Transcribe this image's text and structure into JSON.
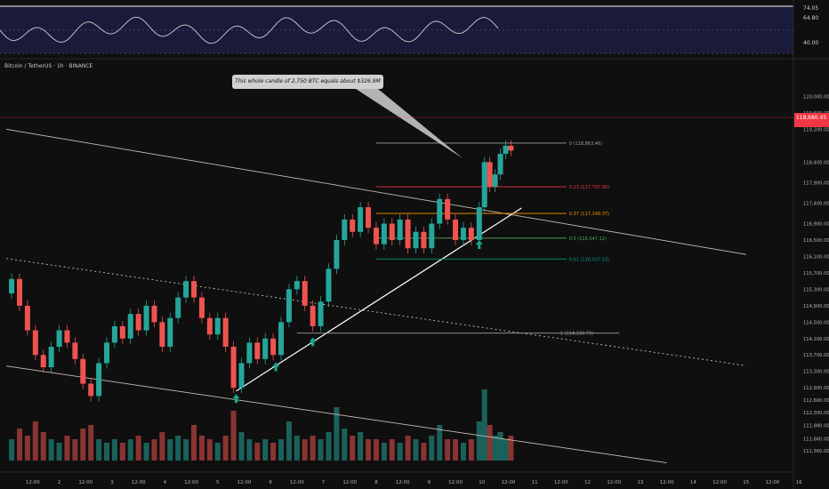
{
  "header": {
    "symbol_title": "Bitcoin / TetherUS · 1h · BINANCE"
  },
  "annotation": {
    "text": "This whole candle of 2,750 BTC equals about $326.9M in volume..."
  },
  "colors": {
    "background": "#0f0f0f",
    "bull": "#26a69a",
    "bear": "#ef5350",
    "fib_0": "#9e9e9e",
    "fib_023": "#f23645",
    "fib_037": "#ff9800",
    "fib_05": "#4caf50",
    "fib_061": "#089981",
    "fib_1": "#9e9e9e",
    "channel": "#c8bfae",
    "rsi_band": "#1a1a3a",
    "rsi_line": "#cfcfcf",
    "arrow": "#1aa58a"
  },
  "rsi_panel": {
    "ticks": [
      "74.05",
      "64.80",
      "40.00"
    ]
  },
  "chart_data": {
    "type": "candlestick",
    "title": "Bitcoin / TetherUS · 1h · BINANCE",
    "last_price_label": "118,680.45",
    "last_price": 118680.45,
    "ylim": [
      111300,
      120400
    ],
    "y_ticks": [
      "120,000.00",
      "119,600.00",
      "119,200.00",
      "118,400.00",
      "117,900.00",
      "117,400.00",
      "116,900.00",
      "116,500.00",
      "116,100.00",
      "115,700.00",
      "115,300.00",
      "114,900.00",
      "114,500.00",
      "114,100.00",
      "113,700.00",
      "113,300.00",
      "112,900.00",
      "112,600.00",
      "112,300.00",
      "111,980.00",
      "111,660.00",
      "111,360.00"
    ],
    "x_ticks": [
      {
        "label": "12:00",
        "d": 1.5
      },
      {
        "label": "2",
        "d": 2
      },
      {
        "label": "12:00",
        "d": 2.5
      },
      {
        "label": "3",
        "d": 3
      },
      {
        "label": "12:00",
        "d": 3.5
      },
      {
        "label": "4",
        "d": 4
      },
      {
        "label": "12:00",
        "d": 4.5
      },
      {
        "label": "5",
        "d": 5
      },
      {
        "label": "12:00",
        "d": 5.5
      },
      {
        "label": "6",
        "d": 6
      },
      {
        "label": "12:00",
        "d": 6.5
      },
      {
        "label": "7",
        "d": 7
      },
      {
        "label": "12:00",
        "d": 7.5
      },
      {
        "label": "8",
        "d": 8
      },
      {
        "label": "12:00",
        "d": 8.5
      },
      {
        "label": "9",
        "d": 9
      },
      {
        "label": "12:00",
        "d": 9.5
      },
      {
        "label": "10",
        "d": 10
      },
      {
        "label": "12:00",
        "d": 10.5
      },
      {
        "label": "11",
        "d": 11
      },
      {
        "label": "12:00",
        "d": 11.5
      },
      {
        "label": "12",
        "d": 12
      },
      {
        "label": "12:00",
        "d": 12.5
      },
      {
        "label": "13",
        "d": 13
      },
      {
        "label": "12:00",
        "d": 13.5
      },
      {
        "label": "14",
        "d": 14
      },
      {
        "label": "12:00",
        "d": 14.5
      },
      {
        "label": "15",
        "d": 15
      },
      {
        "label": "12:00",
        "d": 15.5
      },
      {
        "label": "16",
        "d": 16
      }
    ],
    "fib_levels": [
      {
        "label": "0 (118,863.46)",
        "value": 118863.46,
        "color": "#9e9e9e"
      },
      {
        "label": "0.23 (117,797.95)",
        "value": 117797.95,
        "color": "#f23645"
      },
      {
        "label": "0.37 (117,149.37)",
        "value": 117149.37,
        "color": "#ff9800"
      },
      {
        "label": "0.5 (116,547.12)",
        "value": 116547.12,
        "color": "#4caf50"
      },
      {
        "label": "0.61 (116,037.53)",
        "value": 116037.53,
        "color": "#089981"
      },
      {
        "label": "1 (114,230.79)",
        "value": 114230.79,
        "color": "#9e9e9e"
      }
    ],
    "fib_start_d": 8.0,
    "fib_end_d": 11.6,
    "fib_label_d": 11.65,
    "fib1_start_d": 6.5,
    "fib1_end_d": 12.6,
    "trendlines": [
      {
        "name": "upper-channel",
        "from": [
          1.0,
          119200
        ],
        "to": [
          15.0,
          116150
        ]
      },
      {
        "name": "lower-channel",
        "from": [
          1.0,
          113430
        ],
        "to": [
          13.5,
          111070
        ]
      },
      {
        "name": "dotted-mid",
        "from": [
          1.0,
          116050
        ],
        "to": [
          15.0,
          113440
        ]
      },
      {
        "name": "rising-support",
        "from": [
          5.35,
          112820
        ],
        "to": [
          10.75,
          117280
        ]
      }
    ],
    "arrows": [
      {
        "d": 5.35,
        "value": 112620
      },
      {
        "d": 6.1,
        "value": 113390
      },
      {
        "d": 6.8,
        "value": 114000
      },
      {
        "d": 9.95,
        "value": 116370
      }
    ],
    "ohlc": [
      {
        "d": 1.1,
        "o": 115200,
        "c": 115550
      },
      {
        "d": 1.25,
        "o": 115550,
        "c": 114900
      },
      {
        "d": 1.4,
        "o": 114900,
        "c": 114300
      },
      {
        "d": 1.55,
        "o": 114300,
        "c": 113700
      },
      {
        "d": 1.7,
        "o": 113700,
        "c": 113400
      },
      {
        "d": 1.85,
        "o": 113400,
        "c": 113900
      },
      {
        "d": 2.0,
        "o": 113900,
        "c": 114300
      },
      {
        "d": 2.15,
        "o": 114300,
        "c": 114000
      },
      {
        "d": 2.3,
        "o": 114000,
        "c": 113600
      },
      {
        "d": 2.45,
        "o": 113600,
        "c": 113000
      },
      {
        "d": 2.6,
        "o": 113000,
        "c": 112700
      },
      {
        "d": 2.75,
        "o": 112700,
        "c": 113500
      },
      {
        "d": 2.9,
        "o": 113500,
        "c": 114000
      },
      {
        "d": 3.05,
        "o": 114000,
        "c": 114400
      },
      {
        "d": 3.2,
        "o": 114400,
        "c": 114100
      },
      {
        "d": 3.35,
        "o": 114100,
        "c": 114700
      },
      {
        "d": 3.5,
        "o": 114700,
        "c": 114300
      },
      {
        "d": 3.65,
        "o": 114300,
        "c": 114900
      },
      {
        "d": 3.8,
        "o": 114900,
        "c": 114500
      },
      {
        "d": 3.95,
        "o": 114500,
        "c": 113900
      },
      {
        "d": 4.1,
        "o": 113900,
        "c": 114600
      },
      {
        "d": 4.25,
        "o": 114600,
        "c": 115100
      },
      {
        "d": 4.4,
        "o": 115100,
        "c": 115500
      },
      {
        "d": 4.55,
        "o": 115500,
        "c": 115100
      },
      {
        "d": 4.7,
        "o": 115100,
        "c": 114600
      },
      {
        "d": 4.85,
        "o": 114600,
        "c": 114200
      },
      {
        "d": 5.0,
        "o": 114200,
        "c": 114600
      },
      {
        "d": 5.15,
        "o": 114600,
        "c": 113900
      },
      {
        "d": 5.3,
        "o": 113900,
        "c": 112900
      },
      {
        "d": 5.45,
        "o": 112900,
        "c": 113500
      },
      {
        "d": 5.6,
        "o": 113500,
        "c": 114000
      },
      {
        "d": 5.75,
        "o": 114000,
        "c": 113600
      },
      {
        "d": 5.9,
        "o": 113600,
        "c": 114100
      },
      {
        "d": 6.05,
        "o": 114100,
        "c": 113700
      },
      {
        "d": 6.2,
        "o": 113700,
        "c": 114500
      },
      {
        "d": 6.35,
        "o": 114500,
        "c": 115300
      },
      {
        "d": 6.5,
        "o": 115300,
        "c": 115500
      },
      {
        "d": 6.65,
        "o": 115500,
        "c": 114900
      },
      {
        "d": 6.8,
        "o": 114900,
        "c": 114400
      },
      {
        "d": 6.95,
        "o": 114400,
        "c": 115000
      },
      {
        "d": 7.1,
        "o": 115000,
        "c": 115800
      },
      {
        "d": 7.25,
        "o": 115800,
        "c": 116500
      },
      {
        "d": 7.4,
        "o": 116500,
        "c": 117000
      },
      {
        "d": 7.55,
        "o": 117000,
        "c": 116700
      },
      {
        "d": 7.7,
        "o": 116700,
        "c": 117300
      },
      {
        "d": 7.85,
        "o": 117300,
        "c": 116800
      },
      {
        "d": 8.0,
        "o": 116800,
        "c": 116400
      },
      {
        "d": 8.15,
        "o": 116400,
        "c": 116900
      },
      {
        "d": 8.3,
        "o": 116900,
        "c": 116500
      },
      {
        "d": 8.45,
        "o": 116500,
        "c": 117000
      },
      {
        "d": 8.6,
        "o": 117000,
        "c": 116300
      },
      {
        "d": 8.75,
        "o": 116300,
        "c": 116700
      },
      {
        "d": 8.9,
        "o": 116700,
        "c": 116300
      },
      {
        "d": 9.05,
        "o": 116300,
        "c": 116900
      },
      {
        "d": 9.2,
        "o": 116900,
        "c": 117500
      },
      {
        "d": 9.35,
        "o": 117500,
        "c": 117000
      },
      {
        "d": 9.5,
        "o": 117000,
        "c": 116500
      },
      {
        "d": 9.65,
        "o": 116500,
        "c": 116800
      },
      {
        "d": 9.8,
        "o": 116800,
        "c": 116500
      },
      {
        "d": 9.95,
        "o": 116500,
        "c": 117300
      },
      {
        "d": 10.05,
        "o": 117300,
        "c": 118400
      },
      {
        "d": 10.15,
        "o": 118400,
        "c": 117800
      },
      {
        "d": 10.25,
        "o": 117800,
        "c": 118100
      },
      {
        "d": 10.35,
        "o": 118100,
        "c": 118600
      },
      {
        "d": 10.45,
        "o": 118600,
        "c": 118800
      },
      {
        "d": 10.55,
        "o": 118800,
        "c": 118680
      }
    ],
    "volume": [
      {
        "d": 1.1,
        "v": 0.3
      },
      {
        "d": 1.25,
        "v": 0.45
      },
      {
        "d": 1.4,
        "v": 0.35
      },
      {
        "d": 1.55,
        "v": 0.55
      },
      {
        "d": 1.7,
        "v": 0.4
      },
      {
        "d": 1.85,
        "v": 0.3
      },
      {
        "d": 2.0,
        "v": 0.25
      },
      {
        "d": 2.15,
        "v": 0.35
      },
      {
        "d": 2.3,
        "v": 0.3
      },
      {
        "d": 2.45,
        "v": 0.45
      },
      {
        "d": 2.6,
        "v": 0.5
      },
      {
        "d": 2.75,
        "v": 0.3
      },
      {
        "d": 2.9,
        "v": 0.25
      },
      {
        "d": 3.05,
        "v": 0.3
      },
      {
        "d": 3.2,
        "v": 0.25
      },
      {
        "d": 3.35,
        "v": 0.3
      },
      {
        "d": 3.5,
        "v": 0.35
      },
      {
        "d": 3.65,
        "v": 0.25
      },
      {
        "d": 3.8,
        "v": 0.3
      },
      {
        "d": 3.95,
        "v": 0.4
      },
      {
        "d": 4.1,
        "v": 0.3
      },
      {
        "d": 4.25,
        "v": 0.35
      },
      {
        "d": 4.4,
        "v": 0.3
      },
      {
        "d": 4.55,
        "v": 0.5
      },
      {
        "d": 4.7,
        "v": 0.35
      },
      {
        "d": 4.85,
        "v": 0.3
      },
      {
        "d": 5.0,
        "v": 0.25
      },
      {
        "d": 5.15,
        "v": 0.35
      },
      {
        "d": 5.3,
        "v": 0.7
      },
      {
        "d": 5.45,
        "v": 0.4
      },
      {
        "d": 5.6,
        "v": 0.3
      },
      {
        "d": 5.75,
        "v": 0.25
      },
      {
        "d": 5.9,
        "v": 0.3
      },
      {
        "d": 6.05,
        "v": 0.25
      },
      {
        "d": 6.2,
        "v": 0.3
      },
      {
        "d": 6.35,
        "v": 0.55
      },
      {
        "d": 6.5,
        "v": 0.35
      },
      {
        "d": 6.65,
        "v": 0.3
      },
      {
        "d": 6.8,
        "v": 0.35
      },
      {
        "d": 6.95,
        "v": 0.3
      },
      {
        "d": 7.1,
        "v": 0.4
      },
      {
        "d": 7.25,
        "v": 0.75
      },
      {
        "d": 7.4,
        "v": 0.45
      },
      {
        "d": 7.55,
        "v": 0.35
      },
      {
        "d": 7.7,
        "v": 0.4
      },
      {
        "d": 7.85,
        "v": 0.3
      },
      {
        "d": 8.0,
        "v": 0.3
      },
      {
        "d": 8.15,
        "v": 0.25
      },
      {
        "d": 8.3,
        "v": 0.3
      },
      {
        "d": 8.45,
        "v": 0.25
      },
      {
        "d": 8.6,
        "v": 0.35
      },
      {
        "d": 8.75,
        "v": 0.3
      },
      {
        "d": 8.9,
        "v": 0.25
      },
      {
        "d": 9.05,
        "v": 0.35
      },
      {
        "d": 9.2,
        "v": 0.5
      },
      {
        "d": 9.35,
        "v": 0.3
      },
      {
        "d": 9.5,
        "v": 0.3
      },
      {
        "d": 9.65,
        "v": 0.25
      },
      {
        "d": 9.8,
        "v": 0.3
      },
      {
        "d": 9.95,
        "v": 0.55
      },
      {
        "d": 10.05,
        "v": 1.0
      },
      {
        "d": 10.15,
        "v": 0.5
      },
      {
        "d": 10.25,
        "v": 0.35
      },
      {
        "d": 10.35,
        "v": 0.4
      },
      {
        "d": 10.45,
        "v": 0.3
      },
      {
        "d": 10.55,
        "v": 0.35
      }
    ]
  }
}
